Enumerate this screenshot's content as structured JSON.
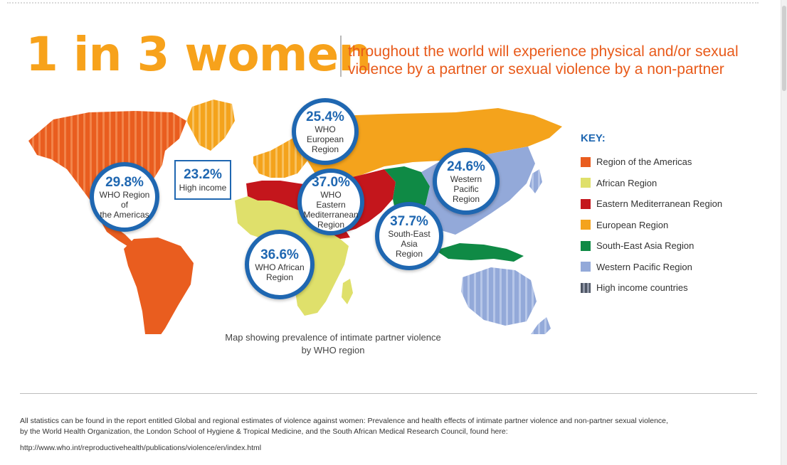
{
  "headline": "1 in 3 women",
  "subheadline": {
    "line1": "throughout the world will experience physical and/or sexual",
    "line2": "violence by a partner or sexual violence by a non-partner"
  },
  "colors": {
    "americas": "#e95d1f",
    "african": "#dfe06b",
    "eastern_mediterranean": "#c4161c",
    "european": "#f4a31c",
    "south_east_asia": "#0f8a45",
    "western_pacific": "#93a9d9",
    "high_income": "#6b7180",
    "accent_blue": "#1f67b1",
    "headline_orange": "#f7a21b"
  },
  "bubbles": [
    {
      "id": "americas",
      "pct": "29.8%",
      "label_lines": [
        "WHO Region of",
        "the Americas"
      ]
    },
    {
      "id": "european",
      "pct": "25.4%",
      "label_lines": [
        "WHO European",
        "Region"
      ]
    },
    {
      "id": "eastern-mediterranean",
      "pct": "37.0%",
      "label_lines": [
        "WHO Eastern",
        "Mediterranean",
        "Region"
      ]
    },
    {
      "id": "western-pacific",
      "pct": "24.6%",
      "label_lines": [
        "Western Pacific",
        "Region"
      ]
    },
    {
      "id": "south-east-asia",
      "pct": "37.7%",
      "label_lines": [
        "South-East Asia",
        "Region"
      ]
    },
    {
      "id": "african",
      "pct": "36.6%",
      "label_lines": [
        "WHO African",
        "Region"
      ]
    }
  ],
  "high_income": {
    "pct": "23.2%",
    "label": "High income"
  },
  "key": {
    "title": "KEY:",
    "items": [
      {
        "label": "Region of the Americas",
        "color": "#e95d1f",
        "striped": false
      },
      {
        "label": "African Region",
        "color": "#dfe06b",
        "striped": false
      },
      {
        "label": "Eastern Mediterranean Region",
        "color": "#c4161c",
        "striped": false
      },
      {
        "label": "European Region",
        "color": "#f4a31c",
        "striped": false
      },
      {
        "label": "South-East Asia Region",
        "color": "#0f8a45",
        "striped": false
      },
      {
        "label": "Western Pacific Region",
        "color": "#93a9d9",
        "striped": false
      },
      {
        "label": "High income countries",
        "color": "#6b7180",
        "striped": true
      }
    ]
  },
  "caption": {
    "line1": "Map showing prevalence of intimate partner violence",
    "line2": "by WHO region"
  },
  "footnote": {
    "line1": "All statistics can be found in the report entitled Global and regional estimates of violence against women: Prevalence and health effects of intimate partner violence and non-partner sexual violence,",
    "line2": "by the World Health Organization, the London School of Hygiene & Tropical Medicine, and the South African Medical Research Council, found here:",
    "url": "http://www.who.int/reproductivehealth/publications/violence/en/index.html"
  }
}
